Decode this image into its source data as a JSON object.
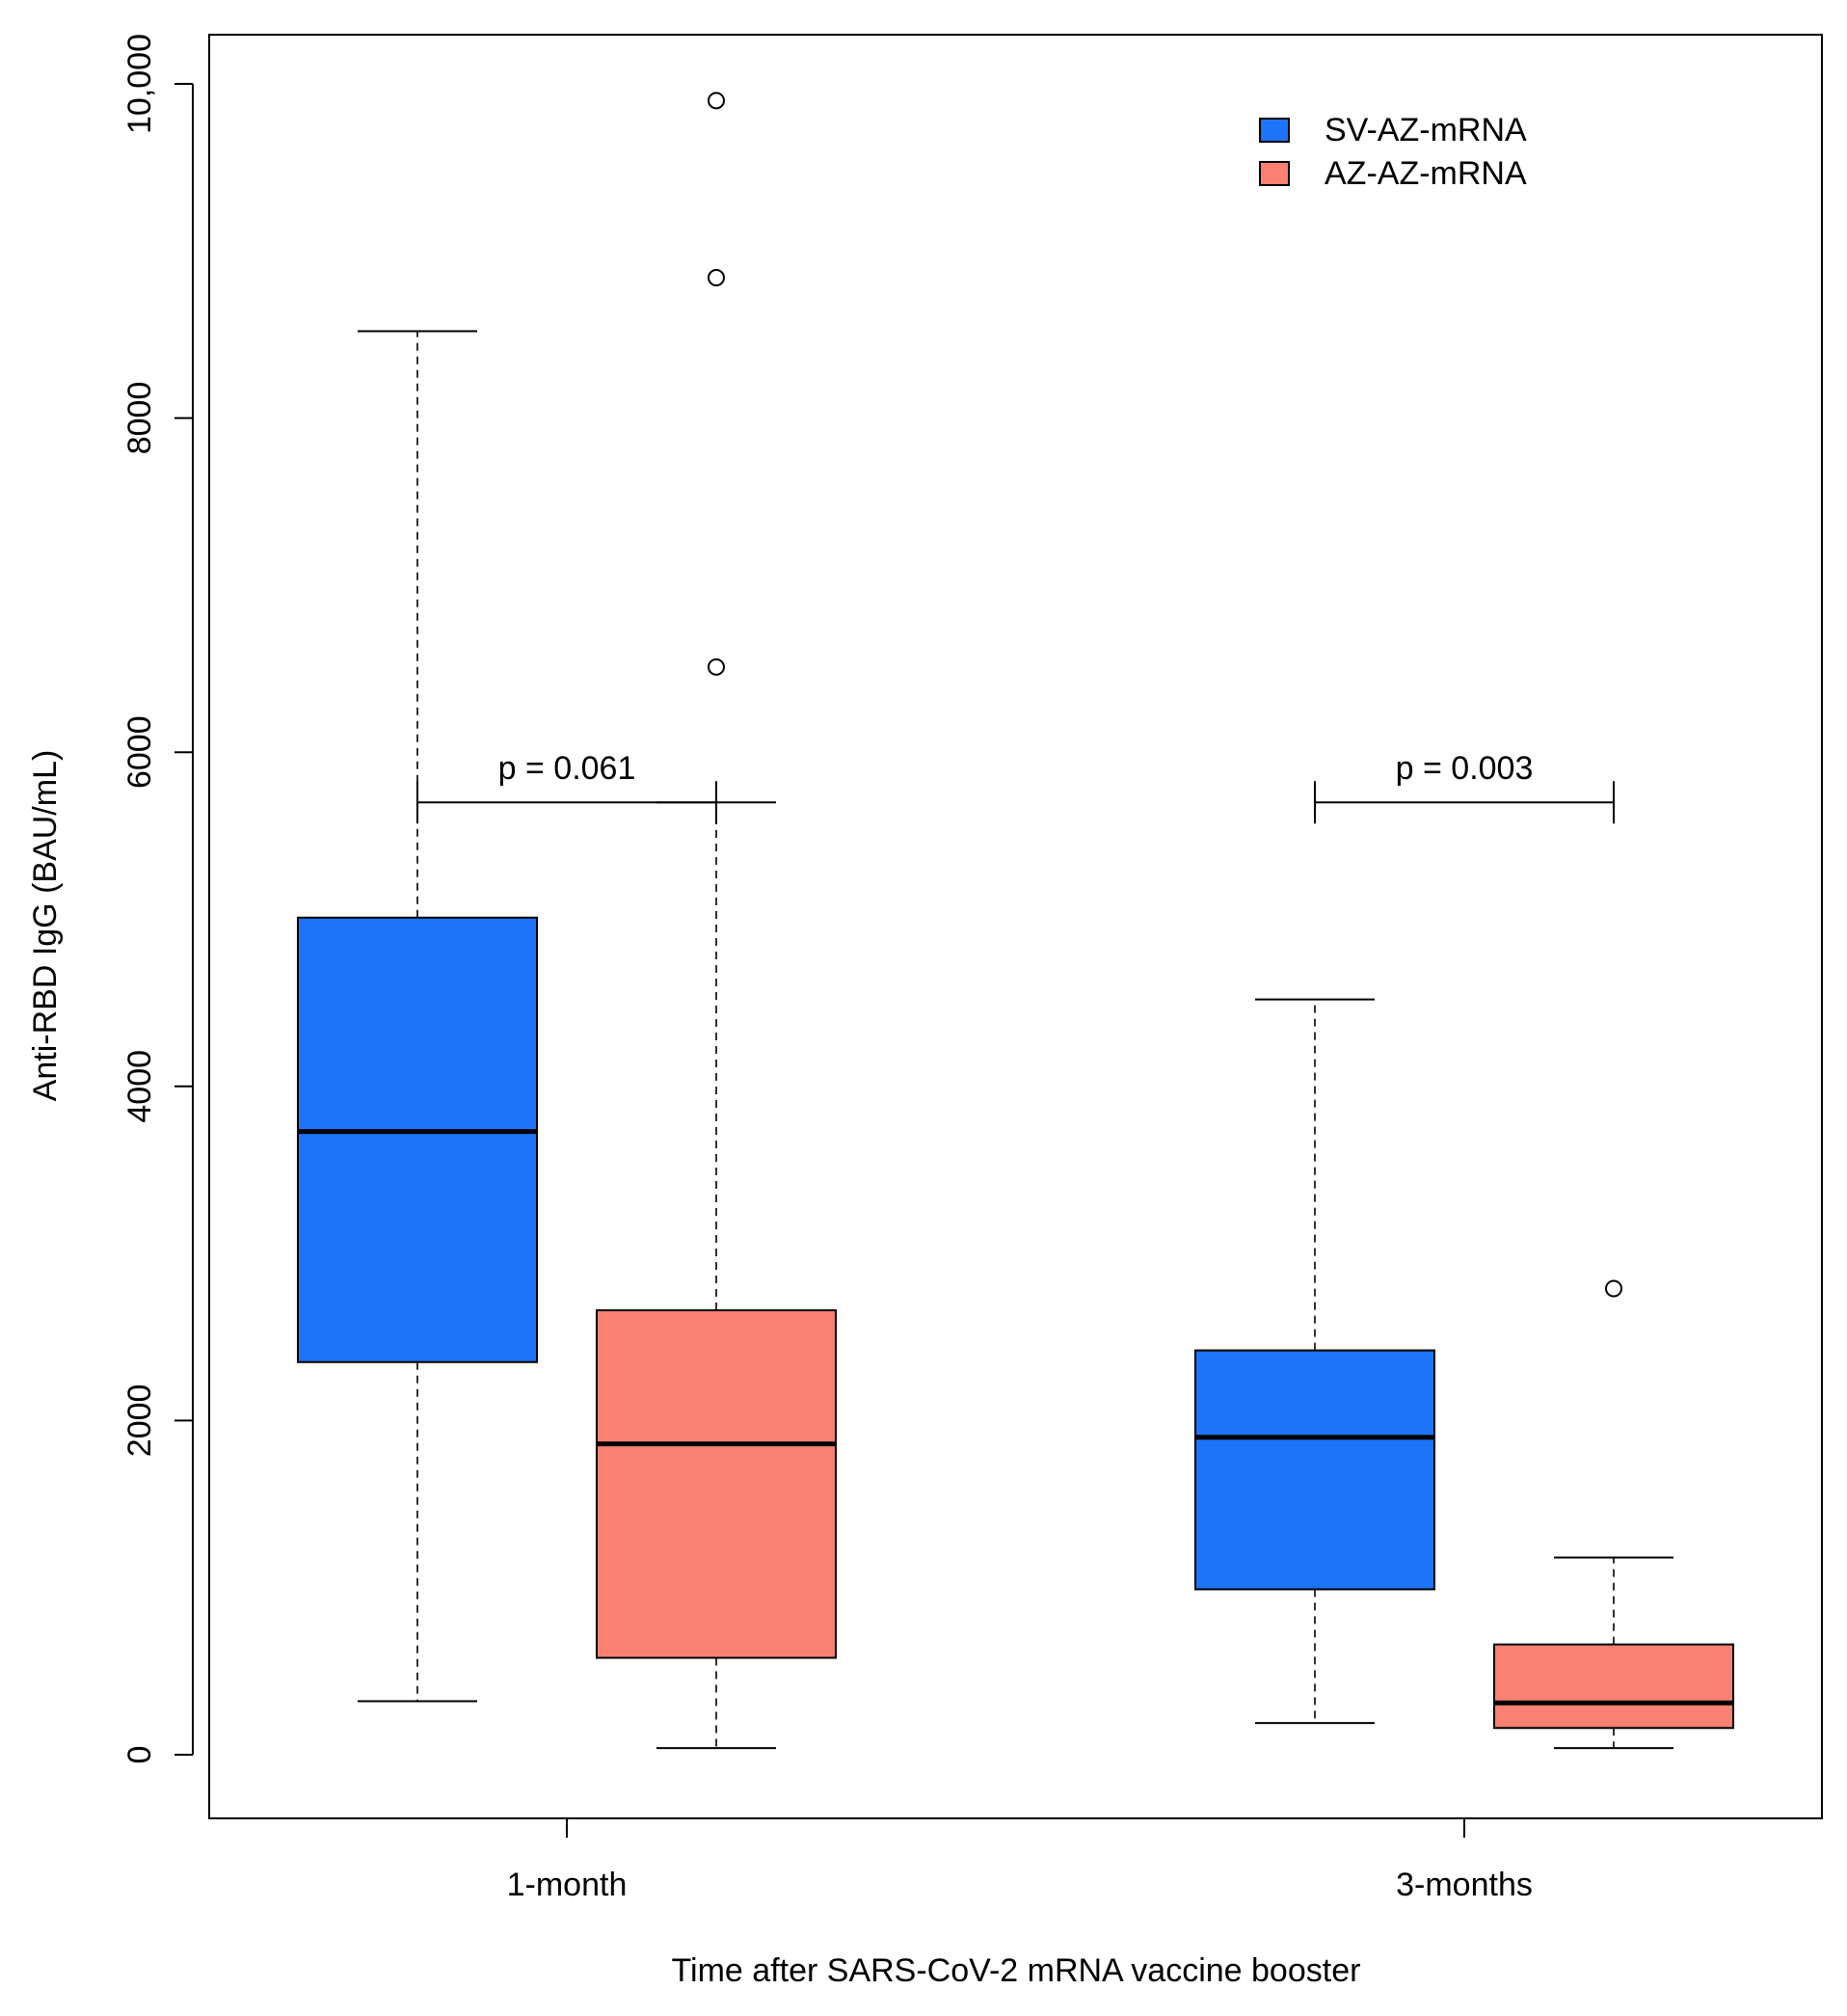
{
  "chart_data": {
    "type": "boxplot",
    "title": "",
    "xlabel": "Time after SARS-CoV-2 mRNA vaccine booster",
    "ylabel": "Anti-RBD IgG (BAU/mL)",
    "ylim": [
      -350,
      10300
    ],
    "yticks": [
      {
        "value": 0,
        "label": "0"
      },
      {
        "value": 2000,
        "label": "2000"
      },
      {
        "value": 4000,
        "label": "4000"
      },
      {
        "value": 6000,
        "label": "6000"
      },
      {
        "value": 8000,
        "label": "8000"
      },
      {
        "value": 10000,
        "label": "10,000"
      }
    ],
    "categories": [
      "1-month",
      "3-months"
    ],
    "legend": {
      "position": "top-right",
      "entries": [
        {
          "name": "SV-AZ-mRNA",
          "color": "#1e74f9"
        },
        {
          "name": "AZ-AZ-mRNA",
          "color": "#fa8072"
        }
      ]
    },
    "series": [
      {
        "name": "SV-AZ-mRNA",
        "color": "#1e74f9",
        "boxes": [
          {
            "category": "1-month",
            "whisker_low": 320,
            "q1": 2350,
            "median": 3730,
            "q3": 5010,
            "whisker_high": 8520,
            "outliers": []
          },
          {
            "category": "3-months",
            "whisker_low": 190,
            "q1": 990,
            "median": 1900,
            "q3": 2420,
            "whisker_high": 4520,
            "outliers": []
          }
        ]
      },
      {
        "name": "AZ-AZ-mRNA",
        "color": "#fa8072",
        "boxes": [
          {
            "category": "1-month",
            "whisker_low": 40,
            "q1": 580,
            "median": 1860,
            "q3": 2660,
            "whisker_high": 5700,
            "outliers": [
              6510,
              8840,
              9900
            ]
          },
          {
            "category": "3-months",
            "whisker_low": 40,
            "q1": 160,
            "median": 310,
            "q3": 660,
            "whisker_high": 1180,
            "outliers": [
              2790
            ]
          }
        ]
      }
    ],
    "annotations": [
      {
        "category": "1-month",
        "text": "p = 0.061",
        "bracket_y": 5700
      },
      {
        "category": "3-months",
        "text": "p = 0.003",
        "bracket_y": 5700
      }
    ]
  }
}
